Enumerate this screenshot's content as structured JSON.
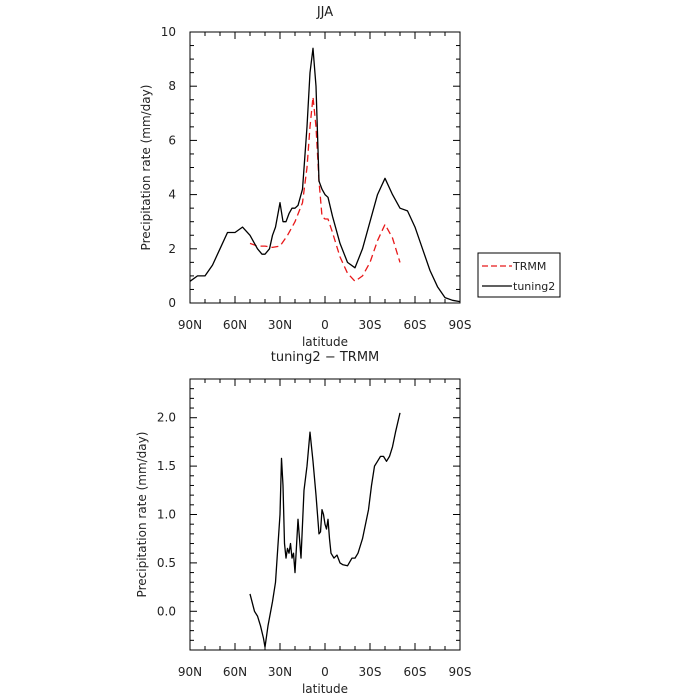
{
  "chart_data": [
    {
      "type": "line",
      "title": "JJA",
      "xlabel": "latitude",
      "ylabel": "Precipitation rate  (mm/day)",
      "x_ticks": [
        "90N",
        "60N",
        "30N",
        "0",
        "30S",
        "60S",
        "90S"
      ],
      "x_tick_values": [
        90,
        60,
        30,
        0,
        -30,
        -60,
        -90
      ],
      "xlim": [
        90,
        -90
      ],
      "ylim": [
        0,
        10
      ],
      "y_ticks": [
        "0",
        "2",
        "4",
        "6",
        "8",
        "10"
      ],
      "y_tick_values": [
        0,
        2,
        4,
        6,
        8,
        10
      ],
      "grid": false,
      "legend_position": "right",
      "legend": [
        "TRMM",
        "tuning2"
      ],
      "series": [
        {
          "name": "TRMM",
          "color": "#e8191a",
          "dash": "dashed",
          "x": [
            50,
            45,
            40,
            35,
            30,
            25,
            20,
            15,
            12,
            10,
            8,
            6,
            4,
            2,
            0,
            -2,
            -5,
            -10,
            -15,
            -20,
            -25,
            -30,
            -35,
            -40,
            -45,
            -50
          ],
          "y": [
            2.2,
            2.1,
            2.1,
            2.05,
            2.1,
            2.5,
            3.0,
            3.7,
            5.0,
            6.5,
            7.6,
            6.5,
            4.5,
            3.2,
            3.1,
            3.1,
            2.6,
            1.7,
            1.1,
            0.8,
            1.0,
            1.5,
            2.3,
            2.9,
            2.4,
            1.5
          ]
        },
        {
          "name": "tuning2",
          "color": "#000000",
          "dash": "solid",
          "x": [
            90,
            85,
            80,
            75,
            70,
            65,
            60,
            55,
            50,
            47,
            45,
            42,
            40,
            37,
            35,
            33,
            30,
            28,
            26,
            24,
            22,
            20,
            18,
            15,
            12,
            10,
            8,
            6,
            4,
            2,
            0,
            -2,
            -5,
            -10,
            -15,
            -20,
            -25,
            -30,
            -35,
            -40,
            -45,
            -50,
            -55,
            -60,
            -65,
            -70,
            -75,
            -80,
            -85,
            -90
          ],
          "y": [
            0.8,
            1.0,
            1.0,
            1.4,
            2.0,
            2.6,
            2.6,
            2.8,
            2.5,
            2.2,
            2.0,
            1.8,
            1.8,
            2.0,
            2.5,
            2.8,
            3.7,
            3.0,
            3.0,
            3.3,
            3.5,
            3.5,
            3.6,
            4.2,
            6.5,
            8.5,
            9.4,
            8.0,
            4.5,
            4.2,
            4.0,
            3.9,
            3.2,
            2.2,
            1.5,
            1.3,
            2.0,
            3.0,
            4.0,
            4.6,
            4.0,
            3.5,
            3.4,
            2.8,
            2.0,
            1.2,
            0.6,
            0.2,
            0.1,
            0.05
          ]
        }
      ]
    },
    {
      "type": "line",
      "title": "tuning2 − TRMM",
      "xlabel": "latitude",
      "ylabel": "Precipitation rate  (mm/day)",
      "x_ticks": [
        "90N",
        "60N",
        "30N",
        "0",
        "30S",
        "60S",
        "90S"
      ],
      "x_tick_values": [
        90,
        60,
        30,
        0,
        -30,
        -60,
        -90
      ],
      "xlim": [
        90,
        -90
      ],
      "ylim": [
        -0.4,
        2.4
      ],
      "y_ticks": [
        "0.0",
        "0.5",
        "1.0",
        "1.5",
        "2.0"
      ],
      "y_tick_values": [
        0,
        0.5,
        1.0,
        1.5,
        2.0
      ],
      "grid": false,
      "series": [
        {
          "color": "#000000",
          "dash": "solid",
          "x": [
            50,
            47,
            45,
            43,
            41,
            40,
            38,
            35,
            33,
            30,
            29,
            28,
            27,
            26,
            25,
            24,
            23,
            22,
            21,
            20,
            18,
            16,
            14,
            12,
            10,
            8,
            6,
            5,
            4,
            3,
            2,
            1,
            0,
            -1,
            -2,
            -3,
            -4,
            -6,
            -8,
            -10,
            -12,
            -15,
            -18,
            -20,
            -22,
            -25,
            -27,
            -29,
            -31,
            -33,
            -35,
            -37,
            -39,
            -41,
            -43,
            -45,
            -47,
            -50
          ],
          "y": [
            0.18,
            0.0,
            -0.05,
            -0.15,
            -0.28,
            -0.37,
            -0.15,
            0.1,
            0.3,
            1.0,
            1.58,
            1.3,
            0.7,
            0.55,
            0.65,
            0.6,
            0.7,
            0.55,
            0.6,
            0.4,
            0.95,
            0.55,
            1.25,
            1.5,
            1.85,
            1.55,
            1.2,
            1.0,
            0.8,
            0.82,
            1.05,
            1.0,
            0.9,
            0.85,
            0.95,
            0.75,
            0.6,
            0.55,
            0.58,
            0.5,
            0.48,
            0.47,
            0.55,
            0.55,
            0.6,
            0.75,
            0.9,
            1.05,
            1.3,
            1.5,
            1.55,
            1.6,
            1.6,
            1.55,
            1.6,
            1.7,
            1.85,
            2.05
          ]
        }
      ]
    }
  ]
}
